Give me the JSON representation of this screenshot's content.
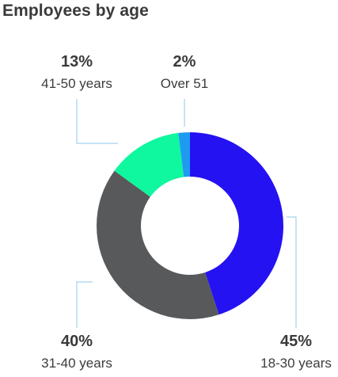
{
  "chart_data": {
    "type": "pie",
    "title": "Employees by age",
    "slices": [
      {
        "label": "18-30 years",
        "value": 45,
        "value_label": "45%",
        "color": "#2412f2"
      },
      {
        "label": "31-40 years",
        "value": 40,
        "value_label": "40%",
        "color": "#58595b"
      },
      {
        "label": "41-50 years",
        "value": 13,
        "value_label": "13%",
        "color": "#0ff79f"
      },
      {
        "label": "Over 51",
        "value": 2,
        "value_label": "2%",
        "color": "#1e9bf0"
      }
    ],
    "leader_line_color": "#8ec8e8"
  }
}
